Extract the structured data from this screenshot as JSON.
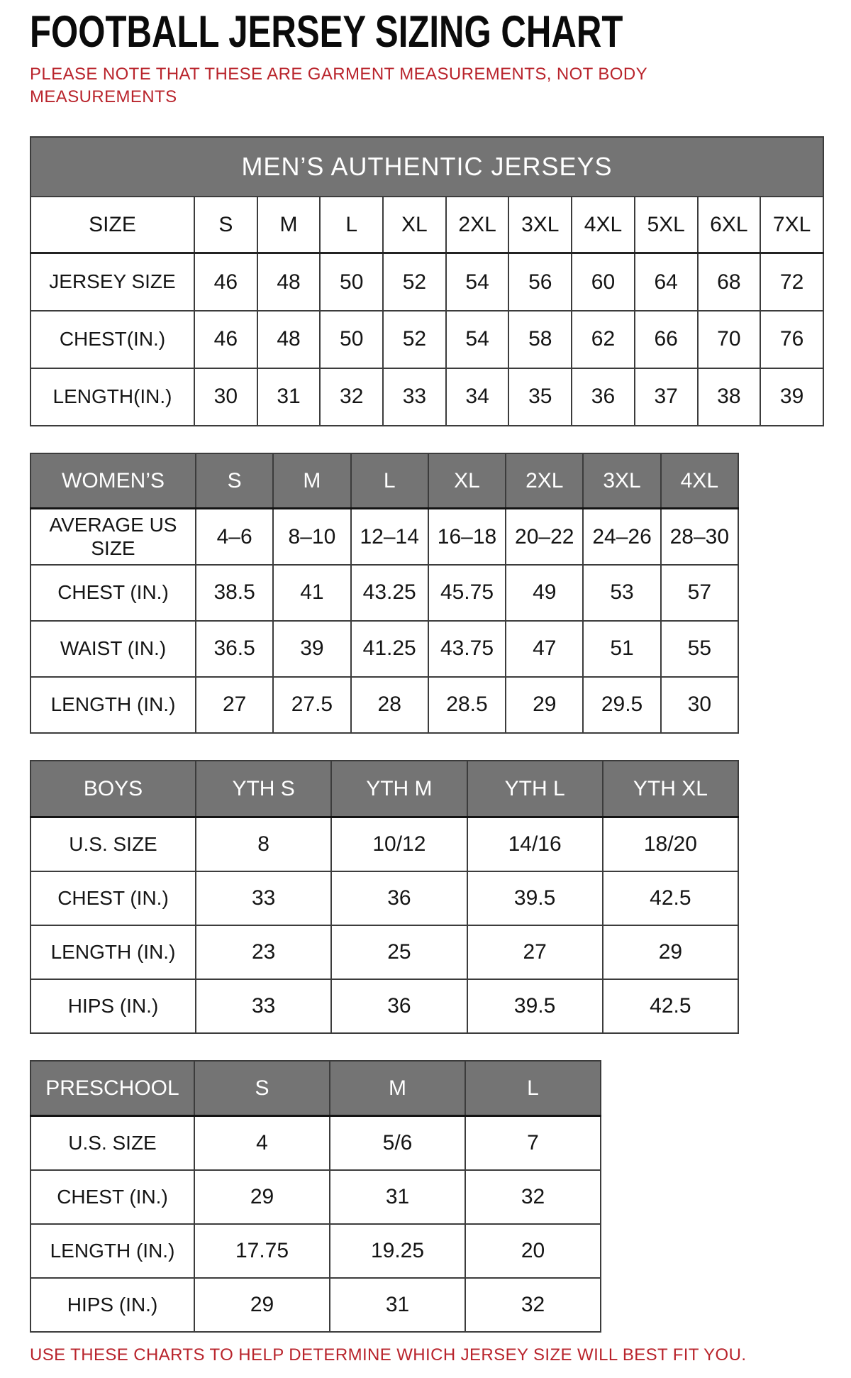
{
  "page": {
    "title": "FOOTBALL JERSEY SIZING CHART",
    "note": "PLEASE NOTE THAT THESE ARE GARMENT MEASUREMENTS, NOT BODY MEASUREMENTS",
    "footer": "USE THESE CHARTS TO HELP DETERMINE WHICH JERSEY SIZE WILL BEST FIT YOU.",
    "colors": {
      "accent_red": "#b9242c",
      "header_gray": "#747474",
      "text_black": "#151515"
    }
  },
  "tables": [
    {
      "id": "mens",
      "banner": "MEN’S AUTHENTIC JERSEYS",
      "header_row": [
        "SIZE",
        "S",
        "M",
        "L",
        "XL",
        "2XL",
        "3XL",
        "4XL",
        "5XL",
        "6XL",
        "7XL"
      ],
      "rows": [
        {
          "label": "JERSEY SIZE",
          "values": [
            "46",
            "48",
            "50",
            "52",
            "54",
            "56",
            "60",
            "64",
            "68",
            "72"
          ]
        },
        {
          "label": "CHEST(IN.)",
          "values": [
            "46",
            "48",
            "50",
            "52",
            "54",
            "58",
            "62",
            "66",
            "70",
            "76"
          ]
        },
        {
          "label": "LENGTH(IN.)",
          "values": [
            "30",
            "31",
            "32",
            "33",
            "34",
            "35",
            "36",
            "37",
            "38",
            "39"
          ]
        }
      ]
    },
    {
      "id": "womens",
      "banner": null,
      "header_row": [
        "WOMEN’S",
        "S",
        "M",
        "L",
        "XL",
        "2XL",
        "3XL",
        "4XL"
      ],
      "rows": [
        {
          "label": "AVERAGE US SIZE",
          "values": [
            "4–6",
            "8–10",
            "12–14",
            "16–18",
            "20–22",
            "24–26",
            "28–30"
          ]
        },
        {
          "label": "CHEST (IN.)",
          "values": [
            "38.5",
            "41",
            "43.25",
            "45.75",
            "49",
            "53",
            "57"
          ]
        },
        {
          "label": "WAIST (IN.)",
          "values": [
            "36.5",
            "39",
            "41.25",
            "43.75",
            "47",
            "51",
            "55"
          ]
        },
        {
          "label": "LENGTH (IN.)",
          "values": [
            "27",
            "27.5",
            "28",
            "28.5",
            "29",
            "29.5",
            "30"
          ]
        }
      ]
    },
    {
      "id": "boys",
      "banner": null,
      "header_row": [
        "BOYS",
        "YTH S",
        "YTH M",
        "YTH L",
        "YTH XL"
      ],
      "rows": [
        {
          "label": "U.S. SIZE",
          "values": [
            "8",
            "10/12",
            "14/16",
            "18/20"
          ]
        },
        {
          "label": "CHEST (IN.)",
          "values": [
            "33",
            "36",
            "39.5",
            "42.5"
          ]
        },
        {
          "label": "LENGTH (IN.)",
          "values": [
            "23",
            "25",
            "27",
            "29"
          ]
        },
        {
          "label": "HIPS (IN.)",
          "values": [
            "33",
            "36",
            "39.5",
            "42.5"
          ]
        }
      ]
    },
    {
      "id": "preschool",
      "banner": null,
      "header_row": [
        "PRESCHOOL",
        "S",
        "M",
        "L"
      ],
      "rows": [
        {
          "label": "U.S. SIZE",
          "values": [
            "4",
            "5/6",
            "7"
          ]
        },
        {
          "label": "CHEST (IN.)",
          "values": [
            "29",
            "31",
            "32"
          ]
        },
        {
          "label": "LENGTH (IN.)",
          "values": [
            "17.75",
            "19.25",
            "20"
          ]
        },
        {
          "label": "HIPS (IN.)",
          "values": [
            "29",
            "31",
            "32"
          ]
        }
      ]
    }
  ]
}
